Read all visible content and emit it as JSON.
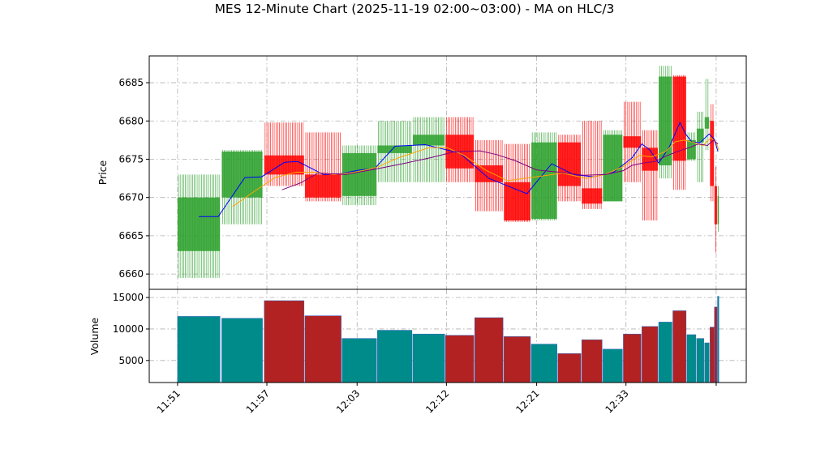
{
  "title": "MES 12-Minute Chart (2025-11-19 02:00~03:00) - MA on HLC/3",
  "colors": {
    "up": "#2ca02c",
    "down": "#ff0000",
    "ma_fast": "#0000ff",
    "ma_mid": "#ffa500",
    "ma_slow": "#800080",
    "volume_up": "#008b8b",
    "volume_down": "#b22222"
  },
  "chart_data": [
    {
      "type": "candlestick",
      "ylabel": "Price",
      "ylim": [
        6658,
        6688.5
      ],
      "yticks": [
        6660,
        6665,
        6670,
        6675,
        6680,
        6685
      ],
      "grid": true,
      "candles": [
        {
          "x": 0.0,
          "w": 4.8,
          "o": 6663,
          "h": 6673,
          "l": 6659.5,
          "c": 6670,
          "v": 12000
        },
        {
          "x": 5.0,
          "w": 4.6,
          "o": 6670,
          "h": 6676.2,
          "l": 6666.5,
          "c": 6676,
          "v": 11700
        },
        {
          "x": 9.8,
          "w": 4.5,
          "o": 6675.5,
          "h": 6679.8,
          "l": 6671.5,
          "c": 6673,
          "v": 14500
        },
        {
          "x": 14.4,
          "w": 4.1,
          "o": 6673,
          "h": 6678.5,
          "l": 6669.5,
          "c": 6670,
          "v": 12100
        },
        {
          "x": 18.6,
          "w": 3.9,
          "o": 6670.2,
          "h": 6676.8,
          "l": 6669,
          "c": 6675.8,
          "v": 8500
        },
        {
          "x": 22.6,
          "w": 3.9,
          "o": 6675.8,
          "h": 6680,
          "l": 6672,
          "c": 6676.8,
          "v": 9800
        },
        {
          "x": 26.6,
          "w": 3.6,
          "o": 6676.8,
          "h": 6680.5,
          "l": 6672,
          "c": 6678.2,
          "v": 9200
        },
        {
          "x": 30.3,
          "w": 3.2,
          "o": 6678.2,
          "h": 6680.5,
          "l": 6672,
          "c": 6673.8,
          "v": 9000
        },
        {
          "x": 33.6,
          "w": 3.2,
          "o": 6674.2,
          "h": 6677.5,
          "l": 6668.2,
          "c": 6672,
          "v": 11800
        },
        {
          "x": 36.9,
          "w": 3.0,
          "o": 6672,
          "h": 6677,
          "l": 6666.8,
          "c": 6667,
          "v": 8800
        },
        {
          "x": 40.0,
          "w": 2.9,
          "o": 6667.2,
          "h": 6678.5,
          "l": 6667,
          "c": 6677.2,
          "v": 7600
        },
        {
          "x": 43.0,
          "w": 2.6,
          "o": 6677.2,
          "h": 6678.2,
          "l": 6669.5,
          "c": 6671.5,
          "v": 6100
        },
        {
          "x": 45.7,
          "w": 2.3,
          "o": 6671.2,
          "h": 6680,
          "l": 6668.5,
          "c": 6669.2,
          "v": 8300
        },
        {
          "x": 48.1,
          "w": 2.2,
          "o": 6669.5,
          "h": 6678.8,
          "l": 6669.5,
          "c": 6678.2,
          "v": 6800
        },
        {
          "x": 50.4,
          "w": 2.0,
          "o": 6678,
          "h": 6682.5,
          "l": 6672,
          "c": 6676.5,
          "v": 9200
        },
        {
          "x": 52.5,
          "w": 1.8,
          "o": 6676.5,
          "h": 6678.8,
          "l": 6667,
          "c": 6673.5,
          "v": 10400
        },
        {
          "x": 54.4,
          "w": 1.5,
          "o": 6674.2,
          "h": 6687.2,
          "l": 6672.5,
          "c": 6685.8,
          "v": 11100
        },
        {
          "x": 56.0,
          "w": 1.5,
          "o": 6685.8,
          "h": 6686,
          "l": 6671,
          "c": 6674.8,
          "v": 12900
        },
        {
          "x": 57.6,
          "w": 1.0,
          "o": 6675,
          "h": 6678.5,
          "l": 6674.8,
          "c": 6677.5,
          "v": 9100
        },
        {
          "x": 58.7,
          "w": 0.8,
          "o": 6677.2,
          "h": 6681.2,
          "l": 6672,
          "c": 6679,
          "v": 8500
        },
        {
          "x": 59.6,
          "w": 0.5,
          "o": 6679,
          "h": 6685.5,
          "l": 6676.2,
          "c": 6680.5,
          "v": 7800
        },
        {
          "x": 60.2,
          "w": 0.45,
          "o": 6680,
          "h": 6682.2,
          "l": 6669.5,
          "c": 6671.5,
          "v": 10300
        },
        {
          "x": 60.7,
          "w": 0.3,
          "o": 6671.5,
          "h": 6674,
          "l": 6662.8,
          "c": 6666.5,
          "v": 13500
        },
        {
          "x": 61.05,
          "w": 0.15,
          "o": 6666.5,
          "h": 6671.5,
          "l": 6665.5,
          "c": 6670.2,
          "v": 15200
        }
      ],
      "moving_averages": [
        {
          "color_key": "ma_fast",
          "points": [
            [
              2.4,
              6667.5
            ],
            [
              4.6,
              6667.5
            ],
            [
              7.6,
              6672.6
            ],
            [
              9.5,
              6672.7
            ],
            [
              12.1,
              6674.6
            ],
            [
              13.6,
              6674.7
            ],
            [
              16.5,
              6673.0
            ],
            [
              18.4,
              6673.1
            ],
            [
              20.6,
              6673.6
            ],
            [
              22.3,
              6673.8
            ],
            [
              24.6,
              6676.7
            ],
            [
              28.0,
              6676.9
            ],
            [
              31.9,
              6675.8
            ],
            [
              35.2,
              6672.5
            ],
            [
              39.5,
              6670.5
            ],
            [
              42.3,
              6674.4
            ],
            [
              44.8,
              6673.0
            ],
            [
              47.1,
              6672.7
            ],
            [
              49.3,
              6673.3
            ],
            [
              51.4,
              6675.2
            ],
            [
              52.5,
              6677.0
            ],
            [
              53.4,
              6676.2
            ],
            [
              54.4,
              6674.5
            ],
            [
              55.6,
              6676.6
            ],
            [
              56.8,
              6679.8
            ],
            [
              57.5,
              6678.2
            ],
            [
              58.2,
              6677.2
            ],
            [
              59.1,
              6677.2
            ],
            [
              60.1,
              6678.3
            ],
            [
              60.7,
              6677.6
            ],
            [
              61.1,
              6676.0
            ]
          ]
        },
        {
          "color_key": "ma_mid",
          "points": [
            [
              6.2,
              6668.8
            ],
            [
              8.3,
              6670.5
            ],
            [
              11.0,
              6672.6
            ],
            [
              13.4,
              6673.3
            ],
            [
              15.6,
              6673.3
            ],
            [
              17.8,
              6673.0
            ],
            [
              20.1,
              6673.3
            ],
            [
              22.4,
              6673.9
            ],
            [
              25.0,
              6675.2
            ],
            [
              28.4,
              6676.5
            ],
            [
              30.5,
              6676.5
            ],
            [
              32.4,
              6675.5
            ],
            [
              34.8,
              6673.6
            ],
            [
              37.3,
              6672.2
            ],
            [
              41.2,
              6672.8
            ],
            [
              43.5,
              6673.2
            ],
            [
              46.2,
              6672.5
            ],
            [
              48.3,
              6673.0
            ],
            [
              50.3,
              6674.0
            ],
            [
              52.2,
              6675.5
            ],
            [
              53.6,
              6675.3
            ],
            [
              55.2,
              6676.0
            ],
            [
              56.3,
              6677.3
            ],
            [
              57.3,
              6677.5
            ],
            [
              58.3,
              6677.2
            ],
            [
              59.4,
              6676.8
            ],
            [
              60.3,
              6677.8
            ],
            [
              60.9,
              6677.2
            ],
            [
              61.2,
              6676.2
            ]
          ]
        },
        {
          "color_key": "ma_slow",
          "points": [
            [
              11.8,
              6671.0
            ],
            [
              13.9,
              6671.9
            ],
            [
              15.9,
              6673.2
            ],
            [
              19.0,
              6673.0
            ],
            [
              22.8,
              6673.8
            ],
            [
              25.8,
              6674.5
            ],
            [
              28.6,
              6675.2
            ],
            [
              31.4,
              6676.0
            ],
            [
              34.2,
              6676.1
            ],
            [
              36.1,
              6675.6
            ],
            [
              38.2,
              6674.8
            ],
            [
              40.6,
              6673.6
            ],
            [
              43.2,
              6673.3
            ],
            [
              45.9,
              6672.9
            ],
            [
              48.4,
              6673.0
            ],
            [
              50.4,
              6673.5
            ],
            [
              51.4,
              6674.2
            ],
            [
              52.6,
              6674.5
            ],
            [
              54.0,
              6674.7
            ],
            [
              55.2,
              6675.4
            ],
            [
              56.5,
              6676.0
            ],
            [
              57.8,
              6676.5
            ],
            [
              58.9,
              6677.0
            ],
            [
              59.9,
              6676.8
            ],
            [
              60.6,
              6677.5
            ],
            [
              61.1,
              6677.0
            ]
          ]
        }
      ]
    },
    {
      "type": "bar",
      "ylabel": "Volume",
      "ylim": [
        1500,
        16300
      ],
      "yticks": [
        5000,
        10000,
        15000
      ],
      "yticklabels": [
        "5000",
        "10000",
        "15000"
      ],
      "grid": true
    }
  ],
  "xaxis": {
    "xlim": [
      -3.2,
      64.3
    ],
    "ticks": [
      {
        "x": 0.0,
        "label": "11:51"
      },
      {
        "x": 10.1,
        "label": "11:57"
      },
      {
        "x": 20.3,
        "label": "12:03"
      },
      {
        "x": 30.4,
        "label": "12:12"
      },
      {
        "x": 40.6,
        "label": "12:21"
      },
      {
        "x": 50.7,
        "label": "12:33"
      },
      {
        "x": 60.9,
        "label": ""
      }
    ]
  }
}
